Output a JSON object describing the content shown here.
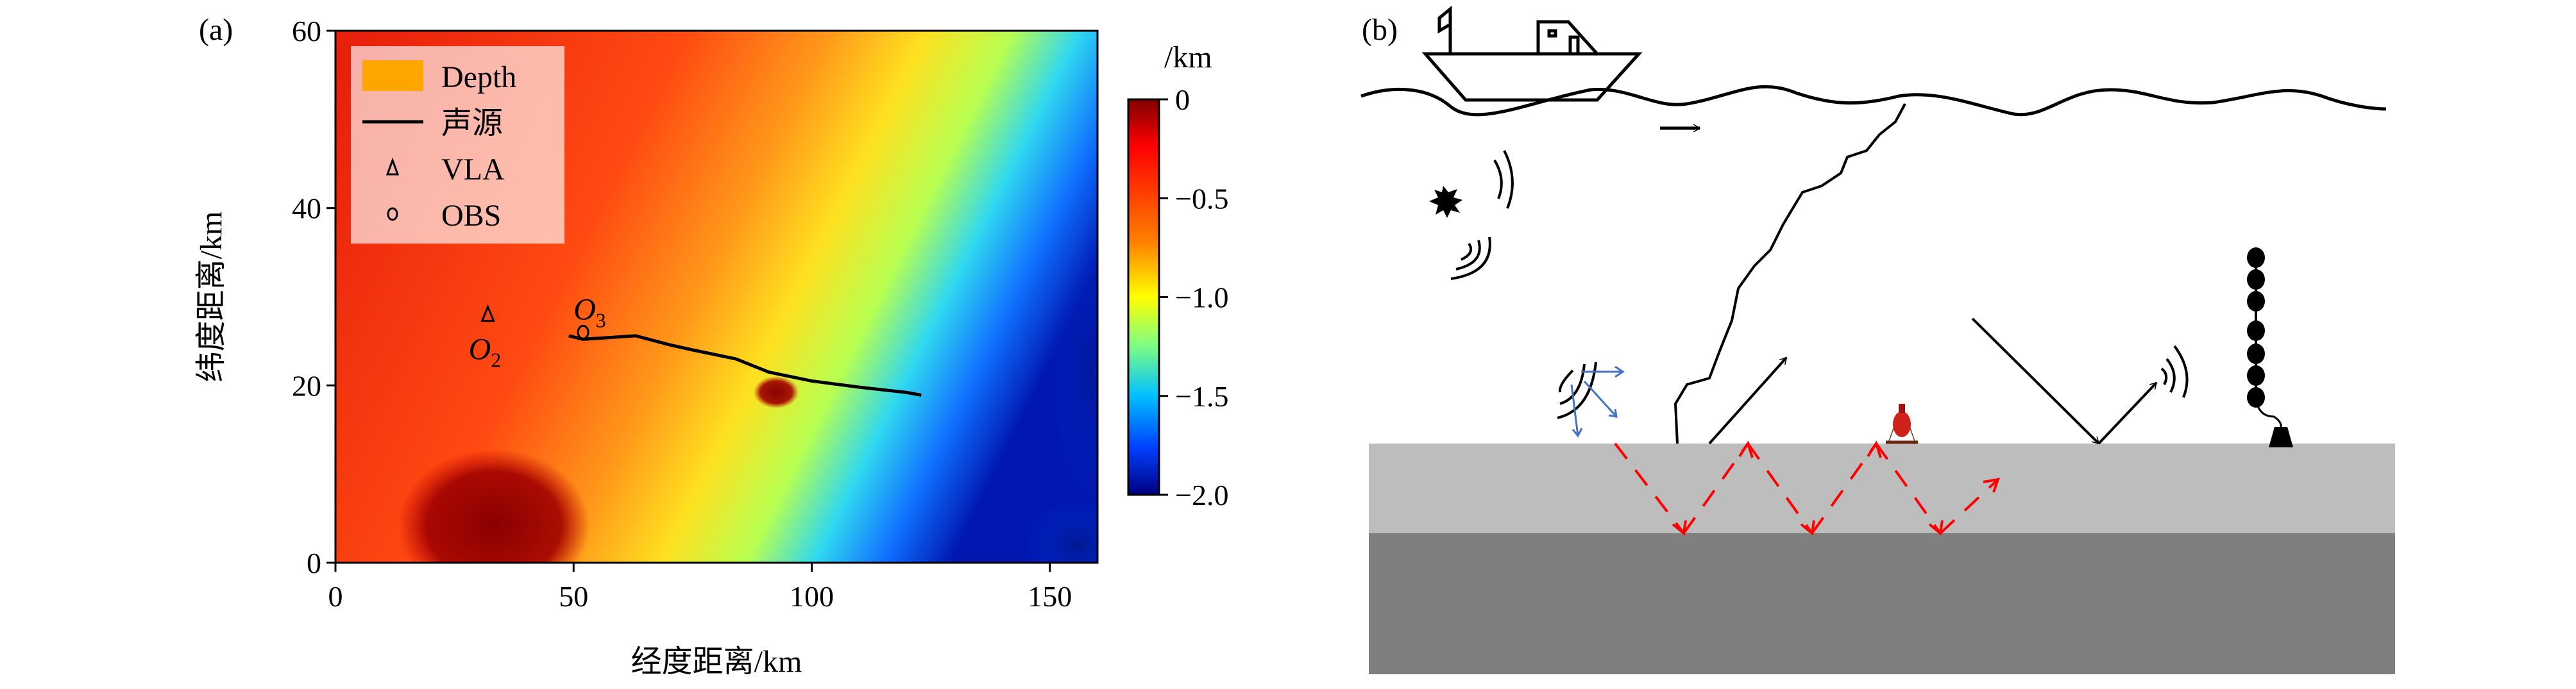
{
  "chart_data": [
    {
      "type": "heatmap",
      "panel_label": "(a)",
      "title": "",
      "xlabel": "经度距离/km",
      "ylabel": "纬度距离/km",
      "xlim": [
        0,
        160
      ],
      "ylim": [
        0,
        60
      ],
      "xticks": [
        "0",
        "50",
        "100",
        "150"
      ],
      "xtick_values": [
        0,
        50,
        100,
        150
      ],
      "yticks": [
        "0",
        "20",
        "40",
        "60"
      ],
      "ytick_values": [
        0,
        20,
        40,
        60
      ],
      "colorbar": {
        "label": "/km",
        "range": [
          -2.0,
          0
        ],
        "colormap": "jet",
        "ticks": [
          "0",
          "−0.5",
          "−1.0",
          "−1.5",
          "−2.0"
        ],
        "tick_values": [
          0,
          -0.5,
          -1.0,
          -1.5,
          -2.0
        ]
      },
      "legend": {
        "placement": "top-left",
        "entries": [
          {
            "label": "Depth",
            "symbol": "patch",
            "color": "#ffa500"
          },
          {
            "label": "声源",
            "symbol": "line",
            "color": "#000000"
          },
          {
            "label": "VLA",
            "symbol": "triangle",
            "color": "#000000"
          },
          {
            "label": "OBS",
            "symbol": "circle",
            "color": "#000000"
          }
        ]
      },
      "source_track": {
        "x": [
          49,
          52,
          63,
          70,
          75,
          84,
          91,
          100,
          110,
          120,
          123
        ],
        "y": [
          25.6,
          25.2,
          25.6,
          24.6,
          24.0,
          23.0,
          21.5,
          20.5,
          19.8,
          19.2,
          18.9
        ]
      },
      "vla": {
        "x": 32,
        "y": 28,
        "annotation": "O",
        "subscript": "2"
      },
      "obs": {
        "x": 52,
        "y": 26,
        "annotation": "O",
        "subscript": "3"
      }
    }
  ],
  "diagram": {
    "panel_label": "(b)",
    "colors": {
      "seabed": "#bdbdbd",
      "basement": "#7f7f7f",
      "red_path": "#ff0000",
      "blue_path": "#4472c4"
    }
  }
}
